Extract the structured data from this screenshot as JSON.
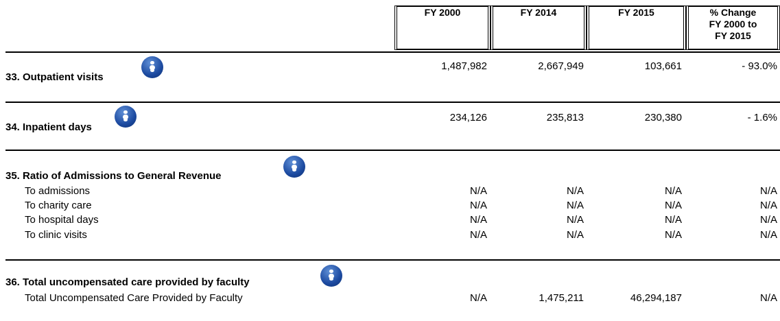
{
  "header": {
    "columns": [
      "FY 2000",
      "FY 2014",
      "FY 2015",
      "% Change FY 2000 to FY 2015"
    ]
  },
  "sections": [
    {
      "title": "33. Outpatient visits",
      "values": [
        "1,487,982",
        "2,667,949",
        "103,661",
        "- 93.0%"
      ]
    },
    {
      "title": "34. Inpatient days",
      "values": [
        "234,126",
        "235,813",
        "230,380",
        "- 1.6%"
      ]
    },
    {
      "title": "35. Ratio of Admissions to General Revenue",
      "rows": [
        {
          "label": "To admissions",
          "values": [
            "N/A",
            "N/A",
            "N/A",
            "N/A"
          ]
        },
        {
          "label": "To charity care",
          "values": [
            "N/A",
            "N/A",
            "N/A",
            "N/A"
          ]
        },
        {
          "label": "To hospital days",
          "values": [
            "N/A",
            "N/A",
            "N/A",
            "N/A"
          ]
        },
        {
          "label": "To clinic visits",
          "values": [
            "N/A",
            "N/A",
            "N/A",
            "N/A"
          ]
        }
      ]
    },
    {
      "title": "36. Total uncompensated care provided by faculty",
      "rows": [
        {
          "label": "Total Uncompensated Care Provided by Faculty",
          "values": [
            "N/A",
            "1,475,211",
            "46,294,187",
            "N/A"
          ]
        }
      ]
    }
  ]
}
